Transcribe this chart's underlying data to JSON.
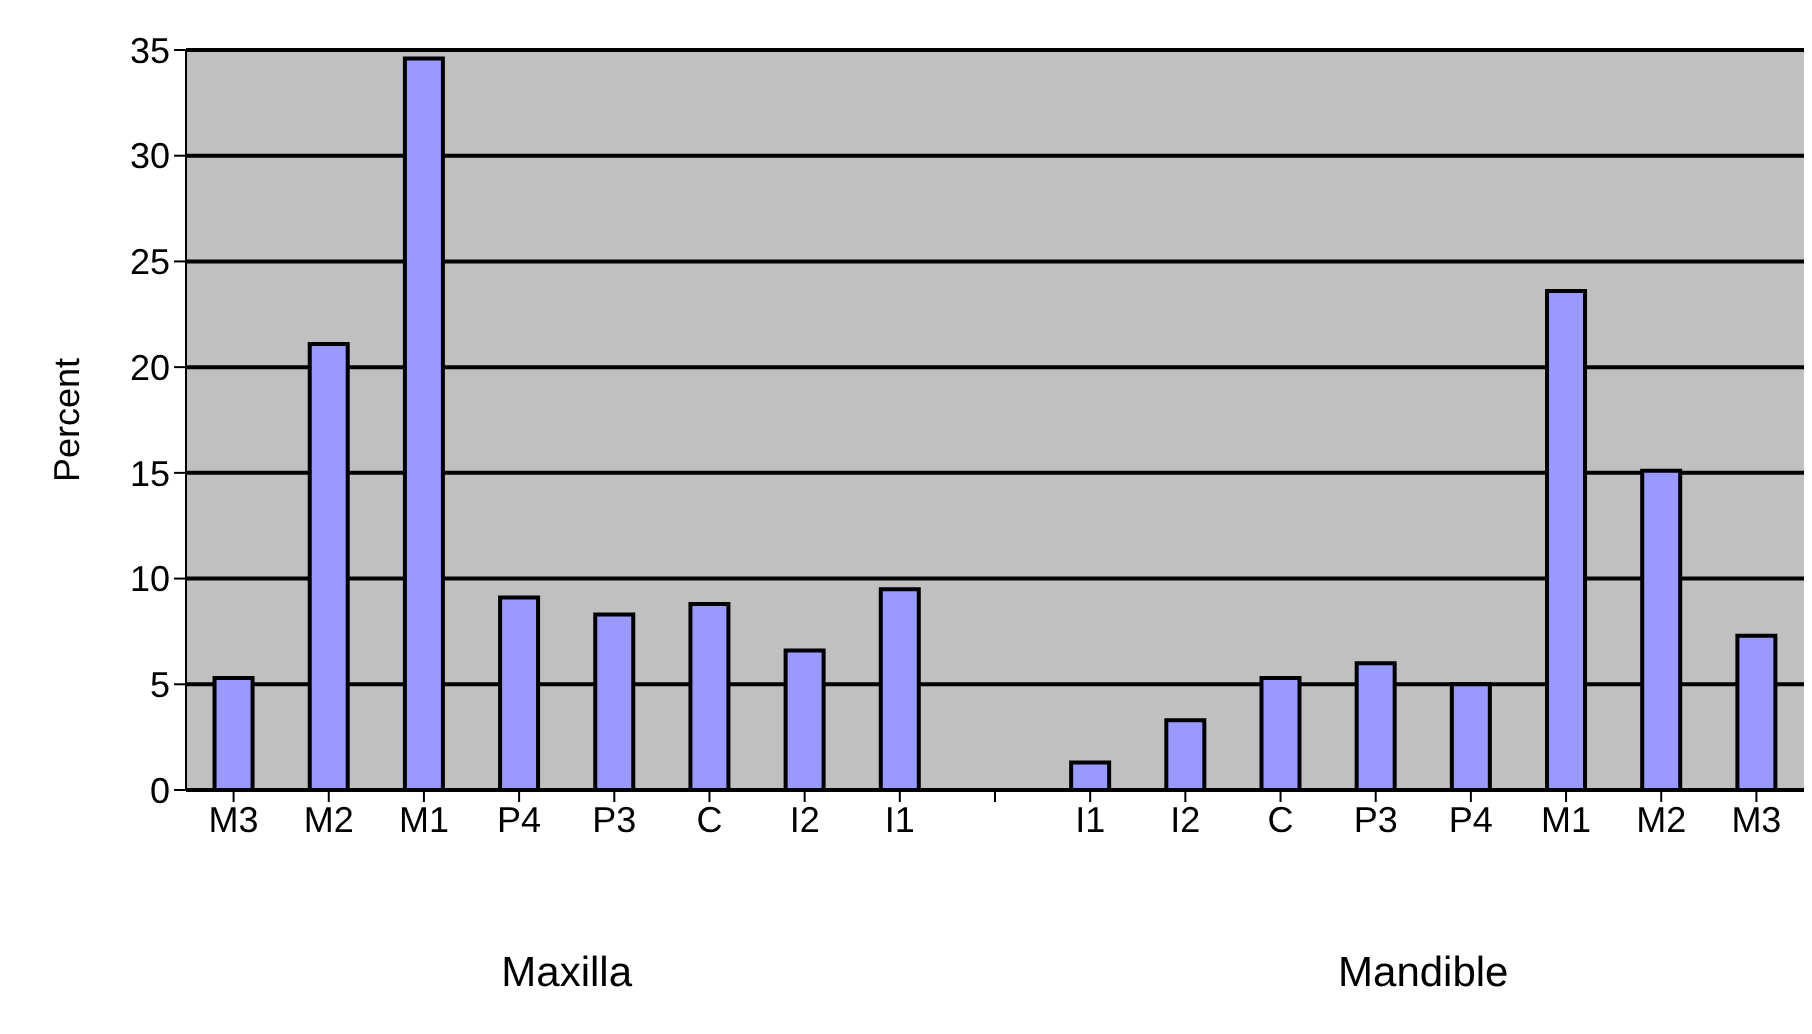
{
  "chart_data": {
    "type": "bar",
    "ylabel": "Percent",
    "categories": [
      "M3",
      "M2",
      "M1",
      "P4",
      "P3",
      "C",
      "I2",
      "I1",
      null,
      "I1",
      "I2",
      "C",
      "P3",
      "P4",
      "M1",
      "M2",
      "M3"
    ],
    "values": [
      5.3,
      21.1,
      34.6,
      9.1,
      8.3,
      8.8,
      6.6,
      9.5,
      null,
      1.3,
      3.3,
      5.3,
      6.0,
      5.0,
      23.6,
      15.1,
      7.3
    ],
    "color": "#9999ff",
    "ylim": [
      0,
      35
    ],
    "yticks": [
      0,
      5,
      10,
      15,
      20,
      25,
      30,
      35
    ],
    "grid": "y",
    "annotations": [
      "Maxilla",
      "Mandible"
    ]
  }
}
